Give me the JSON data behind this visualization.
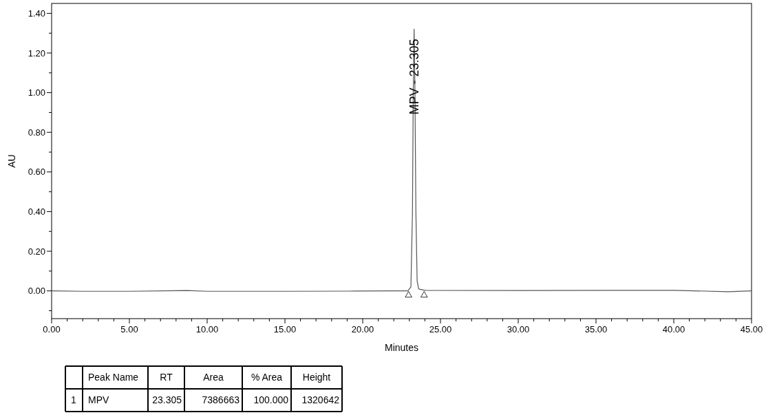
{
  "chart_data": {
    "type": "line",
    "xlabel": "Minutes",
    "ylabel": "AU",
    "xlim": [
      0,
      45
    ],
    "ylim": [
      -0.14,
      1.45
    ],
    "xticks": [
      {
        "value": 0,
        "label": "0.00"
      },
      {
        "value": 1,
        "label": null
      },
      {
        "value": 2,
        "label": null
      },
      {
        "value": 3,
        "label": null
      },
      {
        "value": 4,
        "label": null
      },
      {
        "value": 5,
        "label": "5.00"
      },
      {
        "value": 6,
        "label": null
      },
      {
        "value": 7,
        "label": null
      },
      {
        "value": 8,
        "label": null
      },
      {
        "value": 9,
        "label": null
      },
      {
        "value": 10,
        "label": "10.00"
      },
      {
        "value": 11,
        "label": null
      },
      {
        "value": 12,
        "label": null
      },
      {
        "value": 13,
        "label": null
      },
      {
        "value": 14,
        "label": null
      },
      {
        "value": 15,
        "label": "15.00"
      },
      {
        "value": 16,
        "label": null
      },
      {
        "value": 17,
        "label": null
      },
      {
        "value": 18,
        "label": null
      },
      {
        "value": 19,
        "label": null
      },
      {
        "value": 20,
        "label": "20.00"
      },
      {
        "value": 21,
        "label": null
      },
      {
        "value": 22,
        "label": null
      },
      {
        "value": 23,
        "label": null
      },
      {
        "value": 24,
        "label": null
      },
      {
        "value": 25,
        "label": "25.00"
      },
      {
        "value": 26,
        "label": null
      },
      {
        "value": 27,
        "label": null
      },
      {
        "value": 28,
        "label": null
      },
      {
        "value": 29,
        "label": null
      },
      {
        "value": 30,
        "label": "30.00"
      },
      {
        "value": 31,
        "label": null
      },
      {
        "value": 32,
        "label": null
      },
      {
        "value": 33,
        "label": null
      },
      {
        "value": 34,
        "label": null
      },
      {
        "value": 35,
        "label": "35.00"
      },
      {
        "value": 36,
        "label": null
      },
      {
        "value": 37,
        "label": null
      },
      {
        "value": 38,
        "label": null
      },
      {
        "value": 39,
        "label": null
      },
      {
        "value": 40,
        "label": "40.00"
      },
      {
        "value": 41,
        "label": null
      },
      {
        "value": 42,
        "label": null
      },
      {
        "value": 43,
        "label": null
      },
      {
        "value": 44,
        "label": null
      },
      {
        "value": 45,
        "label": "45.00"
      }
    ],
    "yticks": [
      {
        "value": -0.1,
        "label": null
      },
      {
        "value": 0,
        "label": "0.00"
      },
      {
        "value": 0.1,
        "label": null
      },
      {
        "value": 0.2,
        "label": "0.20"
      },
      {
        "value": 0.3,
        "label": null
      },
      {
        "value": 0.4,
        "label": "0.40"
      },
      {
        "value": 0.5,
        "label": null
      },
      {
        "value": 0.6,
        "label": "0.60"
      },
      {
        "value": 0.7,
        "label": null
      },
      {
        "value": 0.8,
        "label": "0.80"
      },
      {
        "value": 0.9,
        "label": null
      },
      {
        "value": 1.0,
        "label": "1.00"
      },
      {
        "value": 1.1,
        "label": null
      },
      {
        "value": 1.2,
        "label": "1.20"
      },
      {
        "value": 1.3,
        "label": null
      },
      {
        "value": 1.4,
        "label": "1.40"
      }
    ],
    "grid": false,
    "series": [
      {
        "color": "#555555",
        "x": [
          0,
          2,
          5,
          8.7,
          10,
          15,
          19.5,
          22,
          22.9,
          23.1,
          23.2,
          23.25,
          23.305,
          23.36,
          23.42,
          23.5,
          23.6,
          24,
          30,
          36,
          40,
          43.5,
          45
        ],
        "values": [
          0,
          -0.002,
          -0.002,
          0.002,
          -0.002,
          -0.002,
          -0.001,
          0,
          0,
          0.02,
          0.4,
          1.0,
          1.32,
          1.0,
          0.4,
          0.05,
          0.01,
          0.003,
          0.002,
          0.003,
          0.003,
          -0.004,
          0
        ]
      },
      {
        "type": "scatter",
        "color": "#000000",
        "marker": "triangle",
        "x": [
          22.95,
          23.95
        ],
        "values": [
          -0.015,
          -0.015
        ]
      }
    ],
    "annotations": [
      {
        "text": "MPV - 23.305",
        "x": 23.305,
        "y": 1.32
      },
      "Peak Name",
      "RT",
      "Area",
      "% Area",
      "Height",
      "1",
      "MPV",
      "23.305",
      "7386663",
      "100.000",
      "1320642"
    ]
  }
}
